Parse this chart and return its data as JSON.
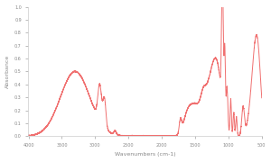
{
  "title": "",
  "xlabel": "Wavenumbers (cm-1)",
  "ylabel": "Absorbance",
  "xlim": [
    4000,
    500
  ],
  "ylim": [
    0.0,
    1.0
  ],
  "line_color": "#f07070",
  "line_width": 0.7,
  "background_color": "#ffffff",
  "yticks": [
    0.0,
    0.1,
    0.2,
    0.3,
    0.4,
    0.5,
    0.6,
    0.7,
    0.8,
    0.9,
    1.0
  ],
  "xticks": [
    4000,
    3500,
    3000,
    2500,
    2000,
    1500,
    1000,
    500
  ]
}
